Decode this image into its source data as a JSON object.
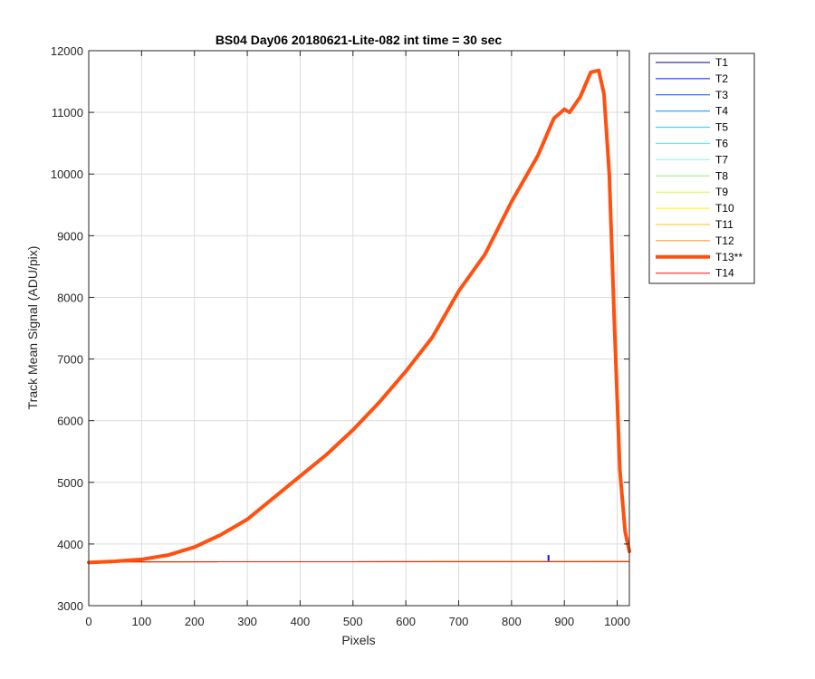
{
  "chart_data": {
    "type": "line",
    "title": "BS04 Day06 20180621-Lite-082 int time = 30 sec",
    "xlabel": "Pixels",
    "ylabel": "Track Mean Signal (ADU/pix)",
    "xlim": [
      0,
      1023
    ],
    "ylim": [
      3000,
      12000
    ],
    "xticks": [
      0,
      100,
      200,
      300,
      400,
      500,
      600,
      700,
      800,
      900,
      1000
    ],
    "yticks": [
      3000,
      4000,
      5000,
      6000,
      7000,
      8000,
      9000,
      10000,
      11000,
      12000
    ],
    "grid": true,
    "legend_position": "outside-top-right",
    "flat_baseline": {
      "x": [
        0,
        1023
      ],
      "y": [
        3710,
        3715
      ]
    },
    "series": [
      {
        "name": "T1",
        "color": "#00008f",
        "width": 1,
        "spike": null
      },
      {
        "name": "T2",
        "color": "#0010ff",
        "width": 1,
        "spike": {
          "x": 870,
          "y": 3820
        }
      },
      {
        "name": "T3",
        "color": "#0050ff",
        "width": 1,
        "spike": null
      },
      {
        "name": "T4",
        "color": "#0090ff",
        "width": 1,
        "spike": null
      },
      {
        "name": "T5",
        "color": "#10cfff",
        "width": 1,
        "spike": null
      },
      {
        "name": "T6",
        "color": "#40ffef",
        "width": 1,
        "spike": null
      },
      {
        "name": "T7",
        "color": "#80ffcf",
        "width": 1,
        "spike": null
      },
      {
        "name": "T8",
        "color": "#90f080",
        "width": 1,
        "spike": null
      },
      {
        "name": "T9",
        "color": "#cfff40",
        "width": 1,
        "spike": null
      },
      {
        "name": "T10",
        "color": "#ffef00",
        "width": 1,
        "spike": null
      },
      {
        "name": "T11",
        "color": "#ffbf20",
        "width": 1,
        "spike": null
      },
      {
        "name": "T12",
        "color": "#ff8f20",
        "width": 1,
        "spike": null
      },
      {
        "name": "T13**",
        "color": "#ff5010",
        "width": 4,
        "x": [
          0,
          50,
          100,
          150,
          200,
          250,
          300,
          350,
          400,
          450,
          500,
          550,
          600,
          650,
          700,
          750,
          800,
          850,
          880,
          900,
          910,
          930,
          950,
          965,
          975,
          985,
          995,
          1005,
          1015,
          1023
        ],
        "y": [
          3700,
          3720,
          3750,
          3820,
          3950,
          4150,
          4400,
          4750,
          5100,
          5450,
          5850,
          6300,
          6800,
          7350,
          8100,
          8700,
          9550,
          10300,
          10900,
          11050,
          11000,
          11250,
          11650,
          11680,
          11300,
          10000,
          7500,
          5200,
          4200,
          3880
        ]
      },
      {
        "name": "T14",
        "color": "#ff1000",
        "width": 1,
        "spike": null
      }
    ]
  }
}
